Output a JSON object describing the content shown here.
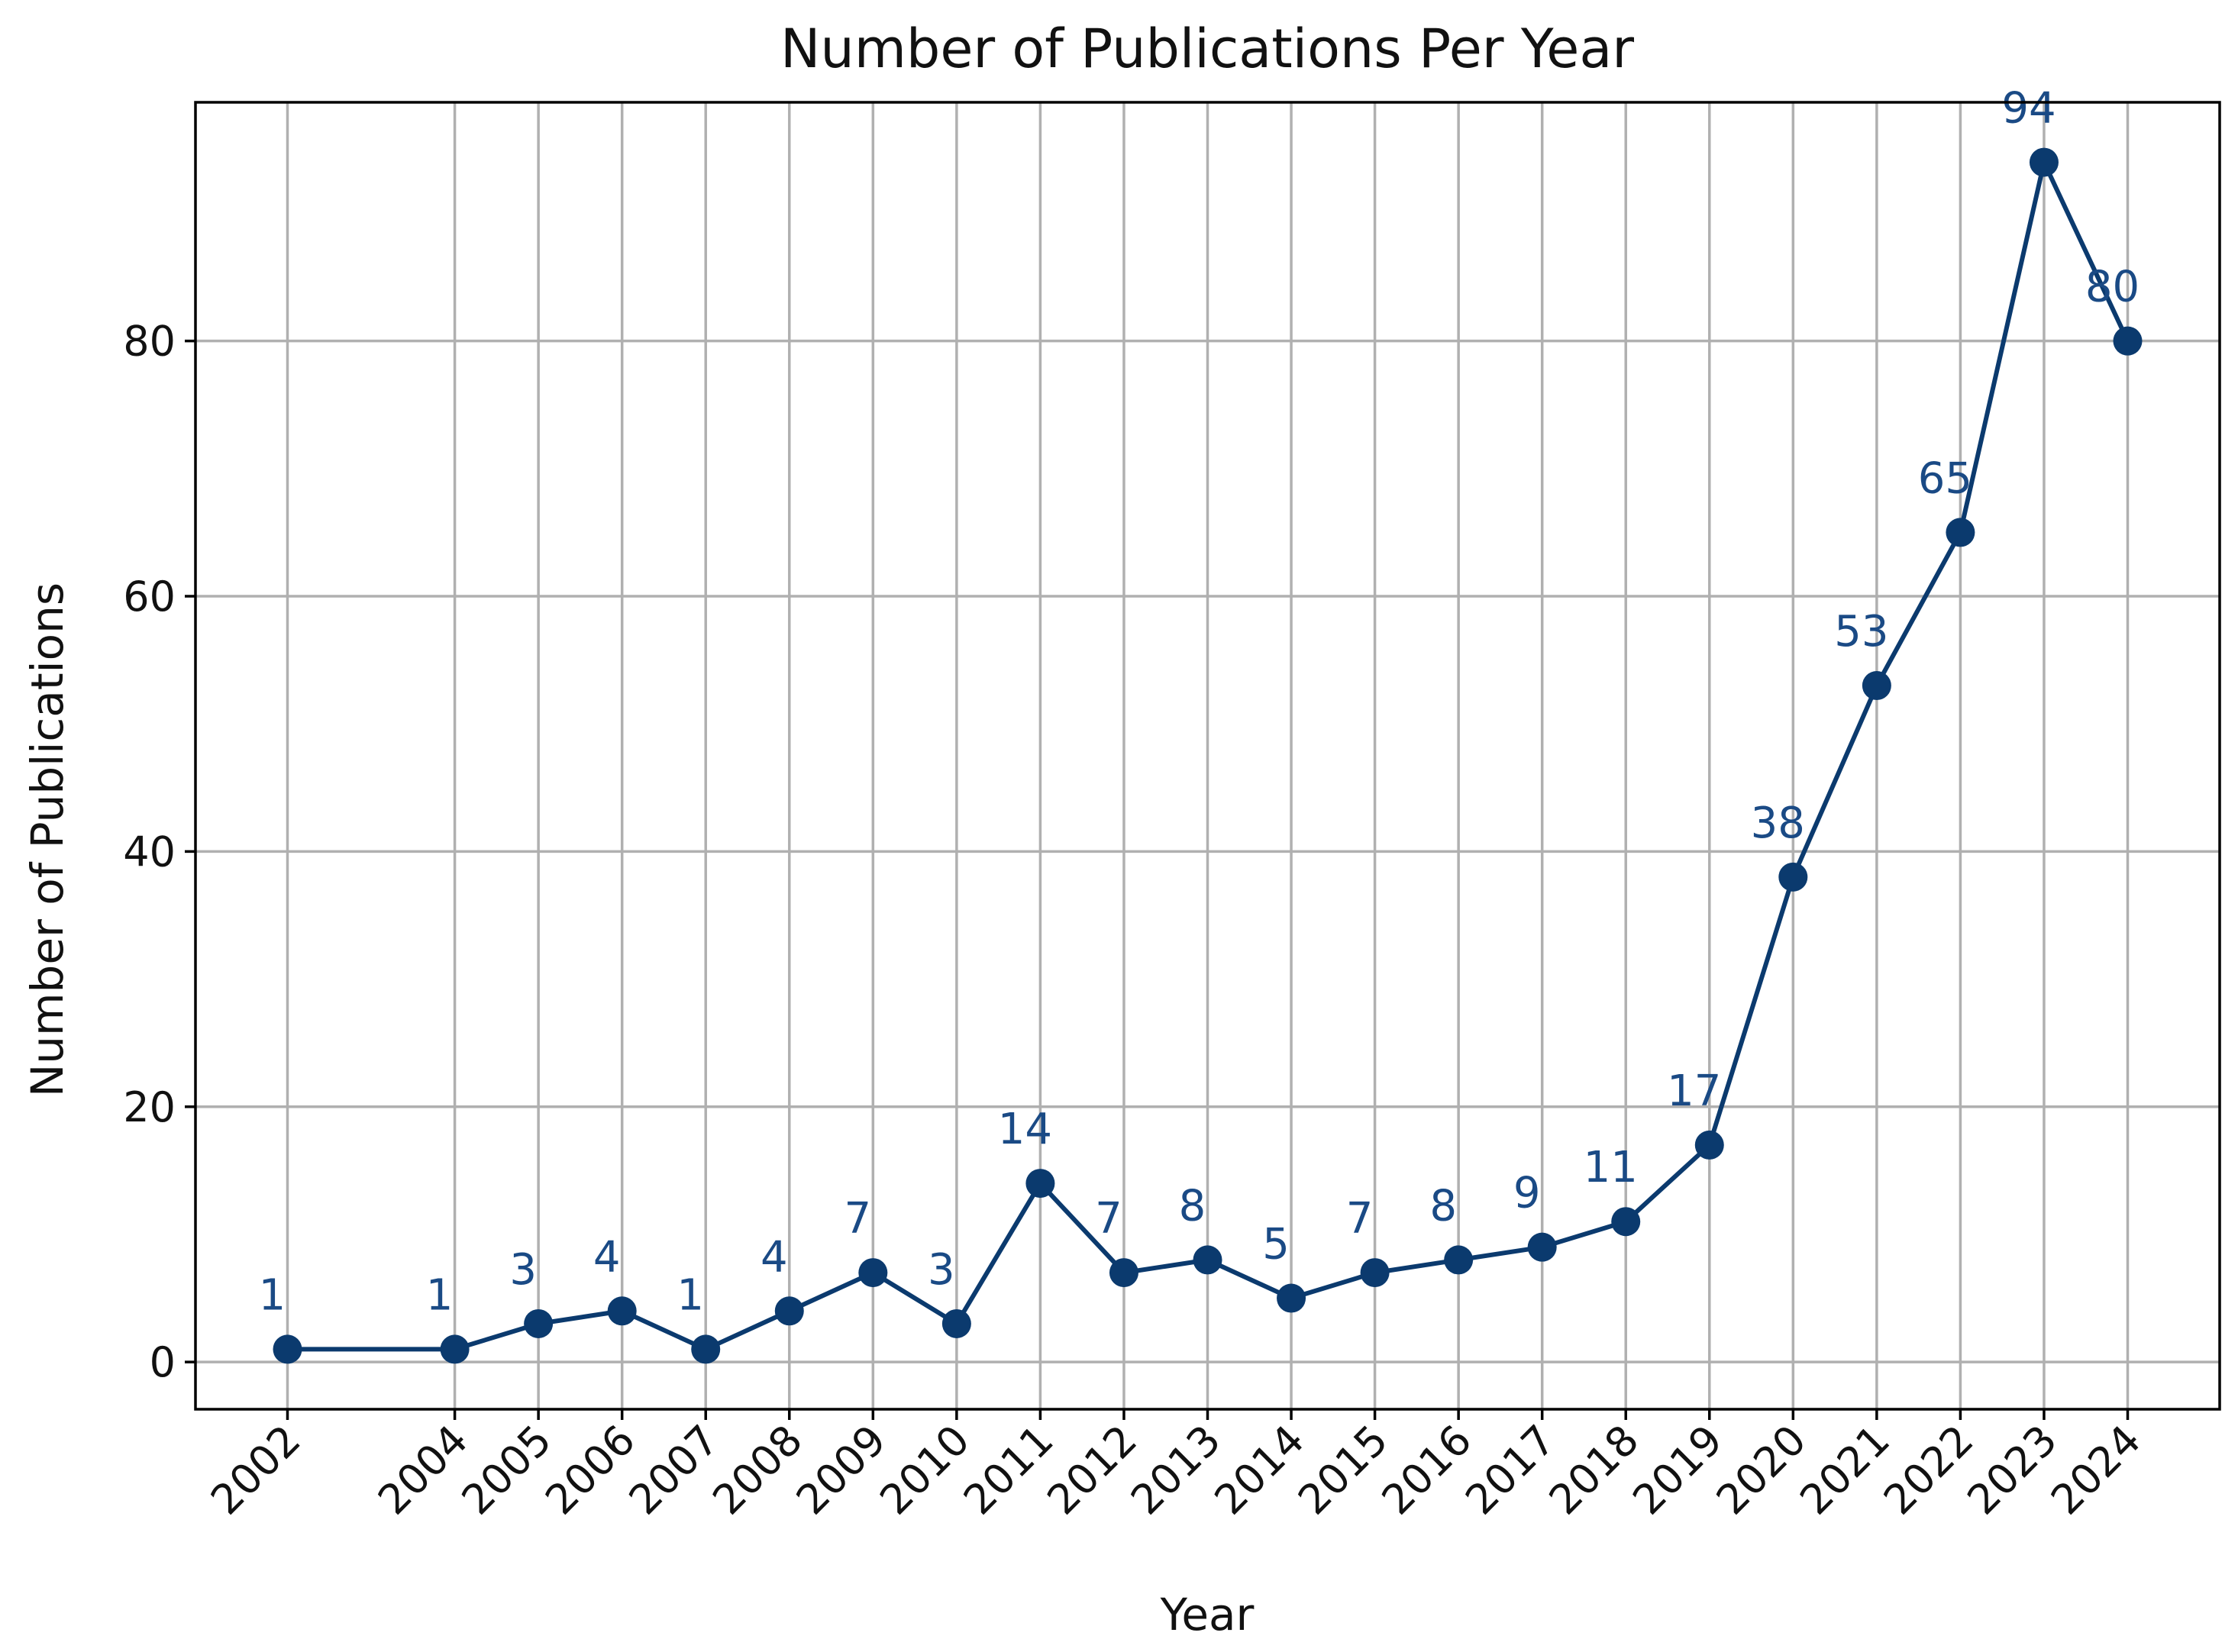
{
  "chart_data": {
    "type": "line",
    "title": "Number of Publications Per Year",
    "xlabel": "Year",
    "ylabel": "Number of Publications",
    "x": [
      2002,
      2004,
      2005,
      2006,
      2007,
      2008,
      2009,
      2010,
      2011,
      2012,
      2013,
      2014,
      2015,
      2016,
      2017,
      2018,
      2019,
      2020,
      2021,
      2022,
      2023,
      2024
    ],
    "values": [
      1,
      1,
      3,
      4,
      1,
      4,
      7,
      3,
      14,
      7,
      8,
      5,
      7,
      8,
      9,
      11,
      17,
      38,
      53,
      65,
      94,
      80
    ],
    "x_tick_labels": [
      "2002",
      "2004",
      "2005",
      "2006",
      "2007",
      "2008",
      "2009",
      "2010",
      "2011",
      "2012",
      "2013",
      "2014",
      "2015",
      "2016",
      "2017",
      "2018",
      "2019",
      "2020",
      "2021",
      "2022",
      "2023",
      "2024"
    ],
    "yticks": [
      0,
      20,
      40,
      60,
      80
    ],
    "y_tick_labels": [
      "0",
      "20",
      "40",
      "60",
      "80"
    ],
    "data_labels": [
      "1",
      "1",
      "3",
      "4",
      "1",
      "4",
      "7",
      "3",
      "14",
      "7",
      "8",
      "5",
      "7",
      "8",
      "9",
      "11",
      "17",
      "38",
      "53",
      "65",
      "94",
      "80"
    ],
    "xlim": [
      2000.9,
      2025.1
    ],
    "ylim": [
      -3.7,
      98.7
    ],
    "grid": true,
    "x_tick_rotation_deg": 45,
    "line_color": "#0b3a6e",
    "label_color": "#1a4a85"
  }
}
